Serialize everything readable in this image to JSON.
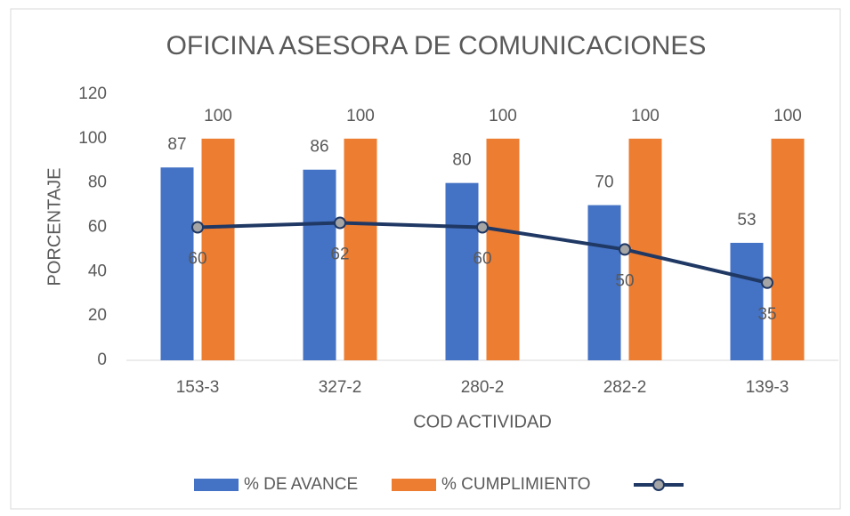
{
  "chart_data": {
    "type": "bar",
    "title": "OFICINA ASESORA DE COMUNICACIONES",
    "x_label": "COD ACTIVIDAD",
    "y_label": "PORCENTAJE",
    "categories": [
      "153-3",
      "327-2",
      "280-2",
      "282-2",
      "139-3"
    ],
    "series": [
      {
        "name": "% DE AVANCE",
        "type": "bar",
        "color": "#4472c4",
        "values": [
          87,
          86,
          80,
          70,
          53
        ]
      },
      {
        "name": "% CUMPLIMIENTO",
        "type": "bar",
        "color": "#ed7d31",
        "values": [
          100,
          100,
          100,
          100,
          100
        ]
      },
      {
        "type": "line",
        "color": "#1f3864",
        "marker_color": "#a5a5a5",
        "values": [
          60,
          62,
          60,
          50,
          35
        ]
      }
    ],
    "ylim": [
      0,
      120
    ],
    "yticks": [
      0,
      20,
      40,
      60,
      80,
      100,
      120
    ],
    "grid": false,
    "legend": "bottom"
  }
}
